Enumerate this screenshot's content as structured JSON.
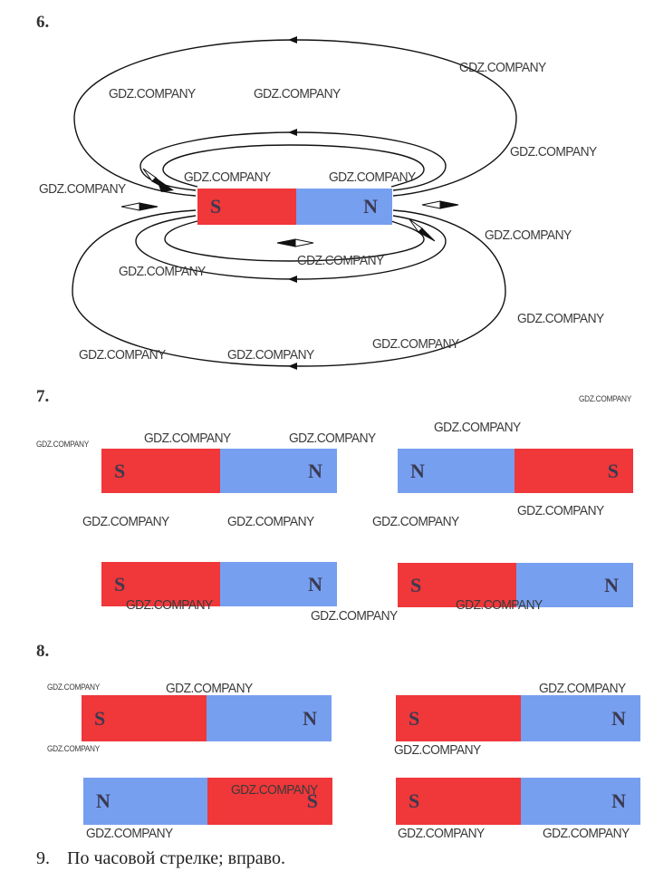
{
  "problems": {
    "p6": "6.",
    "p7": "7.",
    "p8": "8.",
    "p9": "9.",
    "answer9": "По часовой стрелке; вправо."
  },
  "watermark": "GDZ.COMPANY",
  "poles": {
    "south": "S",
    "north": "N"
  },
  "colors": {
    "south": "#f0373a",
    "north": "#779ff0"
  }
}
